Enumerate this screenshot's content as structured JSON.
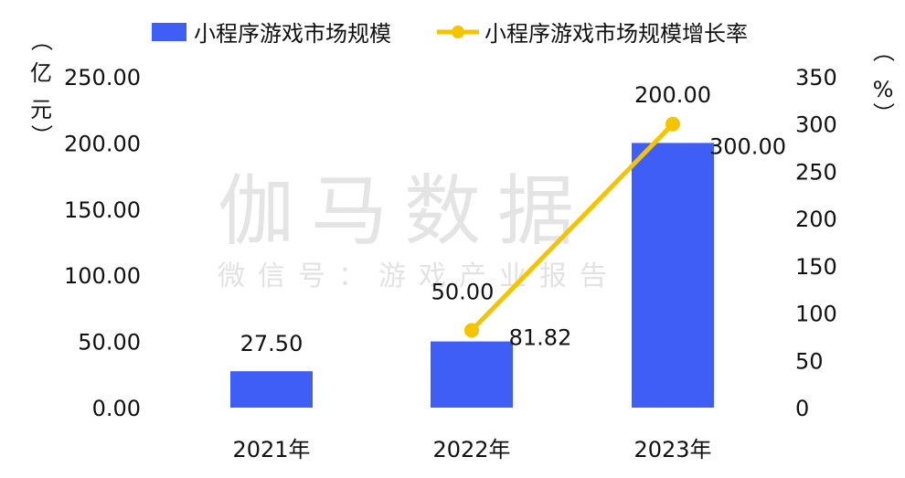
{
  "chart_data": {
    "type": "bar",
    "categories": [
      "2021年",
      "2022年",
      "2023年"
    ],
    "series": [
      {
        "name": "小程序游戏市场规模",
        "type": "bar",
        "axis": "left",
        "color": "#3f5ef5",
        "values": [
          27.5,
          50.0,
          200.0
        ],
        "labels": [
          "27.50",
          "50.00",
          "200.00"
        ]
      },
      {
        "name": "小程序游戏市场规模增长率",
        "type": "line",
        "axis": "right",
        "color": "#f5c400",
        "values": [
          null,
          81.82,
          300.0
        ],
        "labels": [
          "",
          "81.82",
          "300.00"
        ]
      }
    ],
    "y_left": {
      "unit_chars": [
        "（",
        "亿",
        "元",
        "）"
      ],
      "ylim": [
        0,
        250
      ],
      "ticks": [
        "0.00",
        "50.00",
        "100.00",
        "150.00",
        "200.00",
        "250.00"
      ]
    },
    "y_right": {
      "unit_chars": [
        "（",
        "%",
        "）"
      ],
      "ylim": [
        0,
        350
      ],
      "ticks": [
        "0",
        "50",
        "100",
        "150",
        "200",
        "250",
        "300",
        "350"
      ]
    },
    "legend_position": "top"
  },
  "watermark": {
    "title": "伽马数据",
    "subtitle": "微信号：游戏产业报告"
  }
}
